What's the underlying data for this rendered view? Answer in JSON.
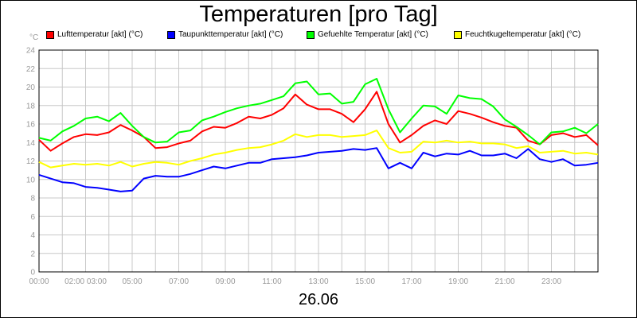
{
  "chart_data": {
    "type": "line",
    "title": "Temperaturen [pro Tag]",
    "date": "26.06",
    "y_unit": "°C",
    "ylim": [
      0,
      24
    ],
    "xlim": [
      0,
      24
    ],
    "y_ticks": [
      0,
      2,
      4,
      6,
      8,
      10,
      12,
      14,
      16,
      18,
      20,
      22,
      24
    ],
    "x_tick_labels": [
      "00:00",
      "02:00 03:00",
      "05:00",
      "07:00",
      "09:00",
      "11:00",
      "13:00",
      "15:00",
      "17:00",
      "19:00",
      "21:00",
      "23:00"
    ],
    "grid": true,
    "legend_position": "top",
    "x": [
      0,
      0.5,
      1,
      1.5,
      2,
      2.5,
      3,
      3.5,
      4,
      4.5,
      5,
      5.5,
      6,
      6.5,
      7,
      7.5,
      8,
      8.5,
      9,
      9.5,
      10,
      10.5,
      11,
      11.5,
      12,
      12.5,
      13,
      13.5,
      14,
      14.5,
      15,
      15.5,
      16,
      16.5,
      17,
      17.5,
      18,
      18.5,
      19,
      19.5,
      20,
      20.5,
      21,
      21.5,
      22,
      22.5,
      23,
      23.5,
      24
    ],
    "series": [
      {
        "name": "Lufttemperatur [akt] (°C)",
        "color": "#ff0000",
        "values": [
          14.3,
          13.1,
          13.9,
          14.6,
          14.9,
          14.8,
          15.1,
          15.9,
          15.3,
          14.6,
          13.4,
          13.5,
          13.9,
          14.2,
          15.2,
          15.7,
          15.6,
          16.1,
          16.8,
          16.6,
          17.0,
          17.7,
          19.2,
          18.1,
          17.6,
          17.6,
          17.1,
          16.2,
          17.6,
          19.5,
          16.0,
          14.0,
          14.8,
          15.8,
          16.4,
          16.0,
          17.4,
          17.1,
          16.7,
          16.2,
          15.8,
          15.6,
          14.2,
          13.8,
          14.8,
          15.0,
          14.6,
          14.8,
          13.7
        ]
      },
      {
        "name": "Taupunkttemperatur [akt] (°C)",
        "color": "#0000ff",
        "values": [
          10.5,
          10.1,
          9.7,
          9.6,
          9.2,
          9.1,
          8.9,
          8.7,
          8.8,
          10.1,
          10.4,
          10.3,
          10.3,
          10.6,
          11.0,
          11.4,
          11.2,
          11.5,
          11.8,
          11.8,
          12.2,
          12.3,
          12.4,
          12.6,
          12.9,
          13.0,
          13.1,
          13.3,
          13.2,
          13.4,
          11.2,
          11.8,
          11.2,
          12.9,
          12.5,
          12.8,
          12.7,
          13.1,
          12.6,
          12.6,
          12.8,
          12.3,
          13.3,
          12.2,
          11.9,
          12.2,
          11.5,
          11.6,
          11.8
        ]
      },
      {
        "name": "Gefuehlte Temperatur [akt] (°C)",
        "color": "#00ff00",
        "values": [
          14.5,
          14.2,
          15.2,
          15.8,
          16.6,
          16.8,
          16.3,
          17.2,
          15.8,
          14.6,
          14.0,
          14.1,
          15.1,
          15.3,
          16.4,
          16.8,
          17.3,
          17.7,
          18.0,
          18.2,
          18.6,
          19.0,
          20.4,
          20.6,
          19.2,
          19.3,
          18.2,
          18.4,
          20.3,
          20.9,
          17.6,
          15.1,
          16.6,
          18.0,
          17.9,
          17.1,
          19.1,
          18.8,
          18.7,
          17.9,
          16.5,
          15.7,
          14.8,
          13.8,
          15.1,
          15.2,
          15.6,
          15.0,
          16.0
        ]
      },
      {
        "name": "Feuchtkugeltemperatur [akt] (°C)",
        "color": "#ffff00",
        "values": [
          11.9,
          11.3,
          11.5,
          11.7,
          11.6,
          11.7,
          11.5,
          11.9,
          11.4,
          11.7,
          11.9,
          11.8,
          11.6,
          12.0,
          12.3,
          12.7,
          12.9,
          13.2,
          13.4,
          13.5,
          13.8,
          14.2,
          14.9,
          14.6,
          14.8,
          14.8,
          14.6,
          14.7,
          14.8,
          15.3,
          13.4,
          12.9,
          13.0,
          14.1,
          14.0,
          14.2,
          14.0,
          14.1,
          13.9,
          13.9,
          13.8,
          13.4,
          13.6,
          12.9,
          13.0,
          13.1,
          12.8,
          12.9,
          12.7
        ]
      }
    ]
  }
}
